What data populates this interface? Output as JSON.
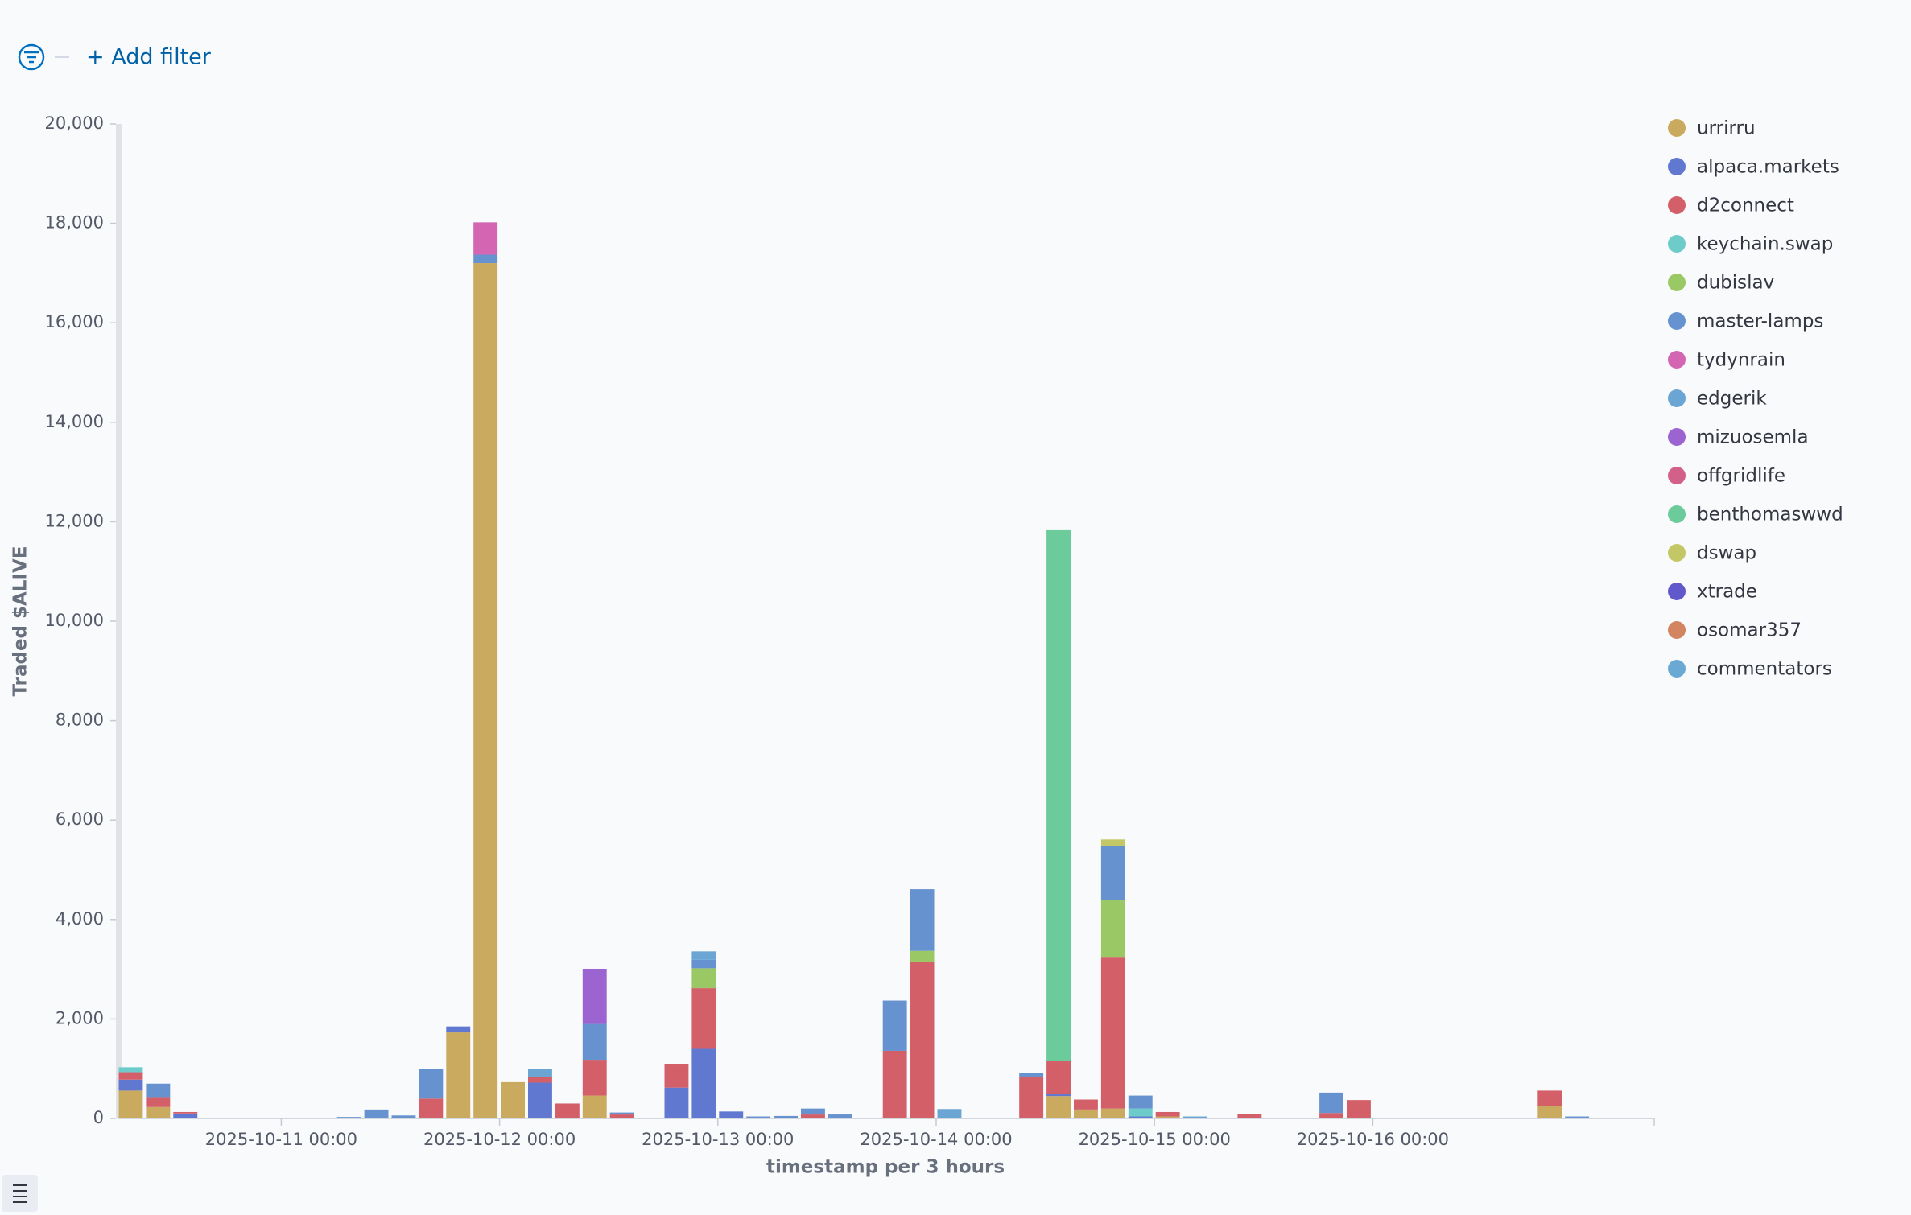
{
  "filter_bar": {
    "add_filter": "+ Add filter"
  },
  "chart_data": {
    "type": "stacked_bar",
    "x_label": "timestamp per 3 hours",
    "y_label": "Traded $ALIVE",
    "categories": [
      null,
      null,
      null,
      null,
      null,
      null,
      "2025-10-11 00:00",
      null,
      null,
      null,
      null,
      null,
      null,
      null,
      "2025-10-12 00:00",
      null,
      null,
      null,
      null,
      null,
      null,
      null,
      "2025-10-13 00:00",
      null,
      null,
      null,
      null,
      null,
      null,
      null,
      "2025-10-14 00:00",
      null,
      null,
      null,
      null,
      null,
      null,
      null,
      "2025-10-15 00:00",
      null,
      null,
      null,
      null,
      null,
      null,
      null,
      "2025-10-16 00:00",
      null,
      null,
      null,
      null,
      null,
      null,
      null,
      null,
      null
    ],
    "ylim": [
      0,
      20000
    ],
    "yticks": [
      0,
      {
        "value": 2000,
        "label": "2,000"
      },
      {
        "value": 4000,
        "label": "4,000"
      },
      {
        "value": 6000,
        "label": "6,000"
      },
      {
        "value": 8000,
        "label": "8,000"
      },
      {
        "value": 10000,
        "label": "10,000"
      },
      {
        "value": 12000,
        "label": "12,000"
      },
      {
        "value": 14000,
        "label": "14,000"
      },
      {
        "value": 16000,
        "label": "16,000"
      },
      {
        "value": 18000,
        "label": "18,000"
      },
      {
        "value": 20000,
        "label": "20,000"
      }
    ],
    "legend_position": "right",
    "series": [
      {
        "name": "urrirru",
        "color": "#caaa5e",
        "values": [
          560,
          230,
          0,
          0,
          0,
          0,
          0,
          0,
          0,
          0,
          0,
          0,
          1730,
          17200,
          730,
          0,
          0,
          460,
          0,
          0,
          0,
          0,
          0,
          0,
          0,
          0,
          0,
          0,
          0,
          0,
          0,
          0,
          0,
          0,
          450,
          180,
          200,
          0,
          40,
          0,
          0,
          0,
          0,
          0,
          0,
          0,
          0,
          0,
          0,
          0,
          0,
          0,
          250,
          0,
          0,
          0
        ]
      },
      {
        "name": "alpaca.markets",
        "color": "#6078d0",
        "values": [
          220,
          0,
          100,
          0,
          0,
          0,
          0,
          0,
          0,
          0,
          0,
          0,
          120,
          0,
          0,
          720,
          0,
          0,
          0,
          0,
          620,
          1400,
          140,
          0,
          0,
          0,
          0,
          0,
          0,
          0,
          0,
          0,
          0,
          0,
          50,
          0,
          0,
          40,
          0,
          0,
          0,
          0,
          0,
          0,
          0,
          0,
          0,
          0,
          0,
          0,
          0,
          0,
          0,
          0,
          0,
          0
        ]
      },
      {
        "name": "d2connect",
        "color": "#d36069",
        "values": [
          150,
          200,
          30,
          0,
          0,
          0,
          0,
          0,
          0,
          0,
          0,
          400,
          0,
          0,
          0,
          110,
          300,
          720,
          80,
          0,
          480,
          1220,
          0,
          0,
          0,
          80,
          0,
          0,
          1360,
          3150,
          0,
          0,
          0,
          830,
          650,
          200,
          3050,
          0,
          90,
          0,
          0,
          90,
          0,
          0,
          110,
          370,
          0,
          0,
          0,
          0,
          0,
          0,
          310,
          0,
          0,
          0
        ]
      },
      {
        "name": "keychain.swap",
        "color": "#6dccca",
        "values": [
          100,
          0,
          0,
          0,
          0,
          0,
          0,
          0,
          0,
          0,
          0,
          0,
          0,
          0,
          0,
          0,
          0,
          0,
          0,
          0,
          0,
          0,
          0,
          0,
          0,
          0,
          0,
          0,
          0,
          0,
          0,
          0,
          0,
          0,
          0,
          0,
          0,
          160,
          0,
          0,
          0,
          0,
          0,
          0,
          0,
          0,
          0,
          0,
          0,
          0,
          0,
          0,
          0,
          0,
          0,
          0
        ]
      },
      {
        "name": "dubislav",
        "color": "#9ac865",
        "values": [
          0,
          0,
          0,
          0,
          0,
          0,
          0,
          0,
          0,
          0,
          0,
          0,
          0,
          0,
          0,
          0,
          0,
          0,
          0,
          0,
          0,
          400,
          0,
          0,
          0,
          0,
          0,
          0,
          0,
          220,
          0,
          0,
          0,
          0,
          0,
          0,
          1150,
          0,
          0,
          0,
          0,
          0,
          0,
          0,
          0,
          0,
          0,
          0,
          0,
          0,
          0,
          0,
          0,
          0,
          0,
          0
        ]
      },
      {
        "name": "master-lamps",
        "color": "#6792d0",
        "values": [
          0,
          270,
          0,
          0,
          0,
          0,
          0,
          0,
          30,
          180,
          60,
          600,
          0,
          170,
          0,
          0,
          0,
          720,
          40,
          0,
          0,
          170,
          0,
          40,
          50,
          120,
          80,
          0,
          1010,
          1240,
          0,
          0,
          0,
          90,
          0,
          0,
          1080,
          260,
          0,
          0,
          0,
          0,
          0,
          0,
          410,
          0,
          0,
          0,
          0,
          0,
          0,
          0,
          0,
          40,
          0,
          0
        ]
      },
      {
        "name": "tydynrain",
        "color": "#d365b3",
        "values": [
          0,
          0,
          0,
          0,
          0,
          0,
          0,
          0,
          0,
          0,
          0,
          0,
          0,
          650,
          0,
          0,
          0,
          0,
          0,
          0,
          0,
          0,
          0,
          0,
          0,
          0,
          0,
          0,
          0,
          0,
          0,
          0,
          0,
          0,
          0,
          0,
          0,
          0,
          0,
          0,
          0,
          0,
          0,
          0,
          0,
          0,
          0,
          0,
          0,
          0,
          0,
          0,
          0,
          0,
          0,
          0
        ]
      },
      {
        "name": "edgerik",
        "color": "#6aa5d4",
        "values": [
          0,
          0,
          0,
          0,
          0,
          0,
          0,
          0,
          0,
          0,
          0,
          0,
          0,
          0,
          0,
          160,
          0,
          0,
          0,
          0,
          0,
          170,
          0,
          0,
          0,
          0,
          0,
          0,
          0,
          0,
          190,
          0,
          0,
          0,
          0,
          0,
          0,
          0,
          0,
          40,
          0,
          0,
          0,
          0,
          0,
          0,
          0,
          0,
          0,
          0,
          0,
          0,
          0,
          0,
          0,
          0
        ]
      },
      {
        "name": "mizuosemla",
        "color": "#9b64d0",
        "values": [
          0,
          0,
          0,
          0,
          0,
          0,
          0,
          0,
          0,
          0,
          0,
          0,
          0,
          0,
          0,
          0,
          0,
          1110,
          0,
          0,
          0,
          0,
          0,
          0,
          0,
          0,
          0,
          0,
          0,
          0,
          0,
          0,
          0,
          0,
          0,
          0,
          0,
          0,
          0,
          0,
          0,
          0,
          0,
          0,
          0,
          0,
          0,
          0,
          0,
          0,
          0,
          0,
          0,
          0,
          0,
          0
        ]
      },
      {
        "name": "offgridlife",
        "color": "#d36088",
        "values": [
          0,
          0,
          0,
          0,
          0,
          0,
          0,
          0,
          0,
          0,
          0,
          0,
          0,
          0,
          0,
          0,
          0,
          0,
          0,
          0,
          0,
          0,
          0,
          0,
          0,
          0,
          0,
          0,
          0,
          0,
          0,
          0,
          0,
          0,
          0,
          0,
          0,
          0,
          0,
          0,
          0,
          0,
          0,
          0,
          0,
          0,
          0,
          0,
          0,
          0,
          0,
          0,
          0,
          0,
          0,
          0
        ]
      },
      {
        "name": "benthomaswwd",
        "color": "#6ccb9a",
        "values": [
          0,
          0,
          0,
          0,
          0,
          0,
          0,
          0,
          0,
          0,
          0,
          0,
          0,
          0,
          0,
          0,
          0,
          0,
          0,
          0,
          0,
          0,
          0,
          0,
          0,
          0,
          0,
          0,
          0,
          0,
          0,
          0,
          0,
          0,
          10680,
          0,
          0,
          0,
          0,
          0,
          0,
          0,
          0,
          0,
          0,
          0,
          0,
          0,
          0,
          0,
          0,
          0,
          0,
          0,
          0,
          0
        ]
      },
      {
        "name": "dswap",
        "color": "#c4c765",
        "values": [
          0,
          0,
          0,
          0,
          0,
          0,
          0,
          0,
          0,
          0,
          0,
          0,
          0,
          0,
          0,
          0,
          0,
          0,
          0,
          0,
          0,
          0,
          0,
          0,
          0,
          0,
          0,
          0,
          0,
          0,
          0,
          0,
          0,
          0,
          0,
          0,
          130,
          0,
          0,
          0,
          0,
          0,
          0,
          0,
          0,
          0,
          0,
          0,
          0,
          0,
          0,
          0,
          0,
          0,
          0,
          0
        ]
      },
      {
        "name": "xtrade",
        "color": "#6158cc",
        "values": [
          0,
          0,
          0,
          0,
          0,
          0,
          0,
          0,
          0,
          0,
          0,
          0,
          0,
          0,
          0,
          0,
          0,
          0,
          0,
          0,
          0,
          0,
          0,
          0,
          0,
          0,
          0,
          0,
          0,
          0,
          0,
          0,
          0,
          0,
          0,
          0,
          0,
          0,
          0,
          0,
          0,
          0,
          0,
          0,
          0,
          0,
          0,
          0,
          0,
          0,
          0,
          0,
          0,
          0,
          0,
          0
        ]
      },
      {
        "name": "osomar357",
        "color": "#d38561",
        "values": [
          0,
          0,
          0,
          0,
          0,
          0,
          0,
          0,
          0,
          0,
          0,
          0,
          0,
          0,
          0,
          0,
          0,
          0,
          0,
          0,
          0,
          0,
          0,
          0,
          0,
          0,
          0,
          0,
          0,
          0,
          0,
          0,
          0,
          0,
          0,
          0,
          0,
          0,
          0,
          0,
          0,
          0,
          0,
          0,
          0,
          0,
          0,
          0,
          0,
          0,
          0,
          0,
          0,
          0,
          0,
          0
        ]
      },
      {
        "name": "commentators",
        "color": "#6aa9d4",
        "values": [
          0,
          0,
          0,
          0,
          0,
          0,
          0,
          0,
          0,
          0,
          0,
          0,
          0,
          0,
          0,
          0,
          0,
          0,
          0,
          0,
          0,
          0,
          0,
          0,
          0,
          0,
          0,
          0,
          0,
          0,
          0,
          0,
          0,
          0,
          0,
          0,
          0,
          0,
          0,
          0,
          0,
          0,
          0,
          0,
          0,
          0,
          0,
          0,
          0,
          0,
          0,
          0,
          0,
          0,
          0,
          0
        ]
      }
    ]
  }
}
